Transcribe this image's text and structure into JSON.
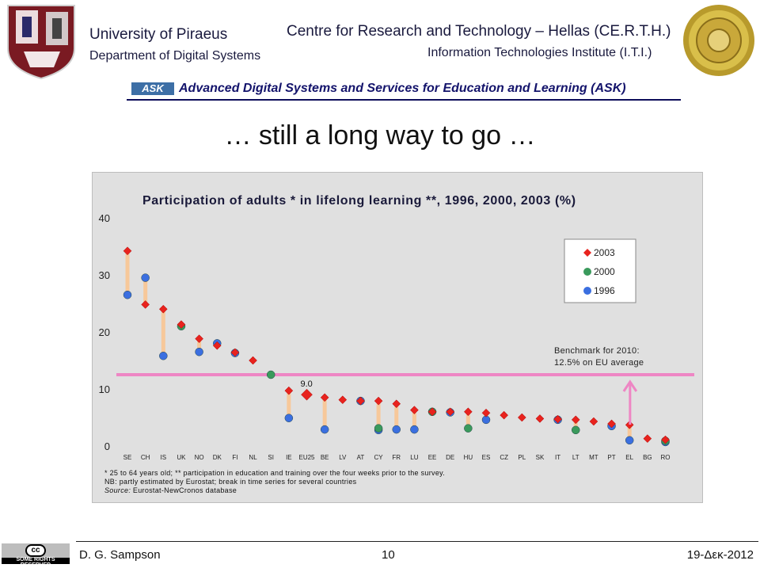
{
  "header": {
    "university": "University of Piraeus",
    "department": "Department of Digital Systems",
    "center": "Centre for Research and Technology – Hellas (CE.R.T.H.)",
    "institute": "Information Technologies Institute (I.T.I.)",
    "ask_logo": "ASK",
    "ask_line": "Advanced Digital Systems and Services for Education and Learning (ASK)"
  },
  "slide_title": "… still a long way to go …",
  "chart_data": {
    "type": "scatter",
    "title": "Participation of adults * in lifelong learning **, 1996, 2000, 2003 (%)",
    "categories": [
      "SE",
      "CH",
      "IS",
      "UK",
      "NO",
      "DK",
      "FI",
      "NL",
      "SI",
      "IE",
      "EU25",
      "BE",
      "LV",
      "AT",
      "CY",
      "FR",
      "LU",
      "EE",
      "DE",
      "HU",
      "ES",
      "CZ",
      "PL",
      "SK",
      "IT",
      "LT",
      "MT",
      "PT",
      "EL",
      "BG",
      "RO"
    ],
    "ylim": [
      0,
      40
    ],
    "yticks": [
      0,
      10,
      20,
      30,
      40
    ],
    "series": [
      {
        "name": "2003",
        "marker": "diamond",
        "color": "#e8231e",
        "values": [
          34.2,
          24.8,
          24.0,
          21.3,
          18.8,
          17.6,
          16.4,
          15.0,
          null,
          9.7,
          9.0,
          8.5,
          8.1,
          7.9,
          7.9,
          7.4,
          6.3,
          6.0,
          6.0,
          6.0,
          5.8,
          5.4,
          5.0,
          4.8,
          4.7,
          4.6,
          4.3,
          3.9,
          3.7,
          1.3,
          1.1
        ]
      },
      {
        "name": "2000",
        "marker": "circle",
        "color": "#3a9a5c",
        "values": [
          null,
          null,
          null,
          21.0,
          null,
          null,
          null,
          null,
          12.5,
          null,
          null,
          null,
          null,
          null,
          3.1,
          null,
          null,
          6.0,
          null,
          3.1,
          null,
          null,
          null,
          null,
          null,
          2.8,
          null,
          null,
          null,
          null,
          0.9
        ]
      },
      {
        "name": "1996",
        "marker": "circle",
        "color": "#3b6fe0",
        "values": [
          26.5,
          29.5,
          15.8,
          null,
          16.5,
          18.0,
          16.3,
          null,
          null,
          4.9,
          null,
          2.9,
          null,
          7.9,
          2.8,
          2.9,
          2.9,
          null,
          5.9,
          null,
          4.6,
          null,
          null,
          null,
          4.6,
          null,
          null,
          3.5,
          1.0,
          null,
          0.7
        ]
      }
    ],
    "benchmark": {
      "value": 12.5,
      "label_line1": "Benchmark for 2010:",
      "label_line2": "12.5% on EU average",
      "color": "#ee86c4"
    },
    "annotation": {
      "text": "9.0",
      "category": "EU25"
    },
    "legend_position": "top-right",
    "range_bar_color": "#f7c89a",
    "arrow_color": "#ee86c4",
    "grid": false
  },
  "notes": {
    "line1": "* 25 to 64 years old;    ** participation in education and training over the four weeks prior to the survey.",
    "line2": "NB: partly estimated by Eurostat; break in time series  for several countries",
    "line3_label": "Source:",
    "line3_text": " Eurostat-NewCronos database"
  },
  "footer": {
    "author": "D. G. Sampson",
    "page": "10",
    "date": "19-Δεκ-2012",
    "cc_text": "SOME RIGHTS RESERVED",
    "cc_mark": "cc"
  }
}
